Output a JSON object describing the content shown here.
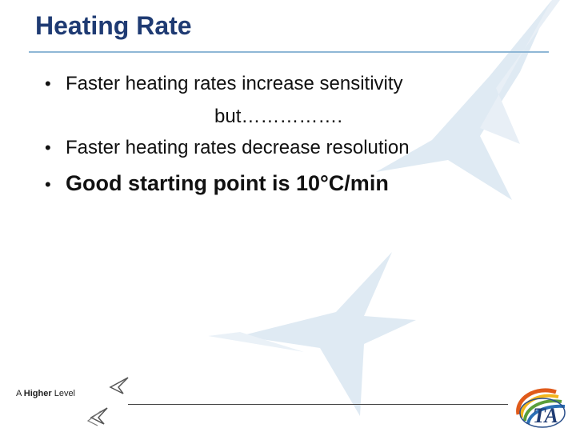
{
  "slide": {
    "title": "Heating Rate",
    "bullets": [
      {
        "text": "Faster heating rates increase sensitivity",
        "style": "normal"
      },
      {
        "text": "Faster heating rates decrease resolution",
        "style": "normal"
      },
      {
        "text": "Good starting point is 10°C/min",
        "style": "bold"
      }
    ],
    "continuation": "but……………."
  },
  "footer": {
    "tagline_word1": "A",
    "tagline_word2": "Higher",
    "tagline_word3": "Level",
    "logo_text": "TA"
  },
  "colors": {
    "title": "#1f3b73",
    "rule": "#8fb7d6",
    "watermark": "#dce8f2"
  },
  "icons": {
    "watermark": "swoosh-star-watermark",
    "footer_arrow_1": "arrow-swoosh-icon",
    "footer_arrow_2": "double-arrow-swoosh-icon",
    "logo": "ta-globe-logo"
  }
}
